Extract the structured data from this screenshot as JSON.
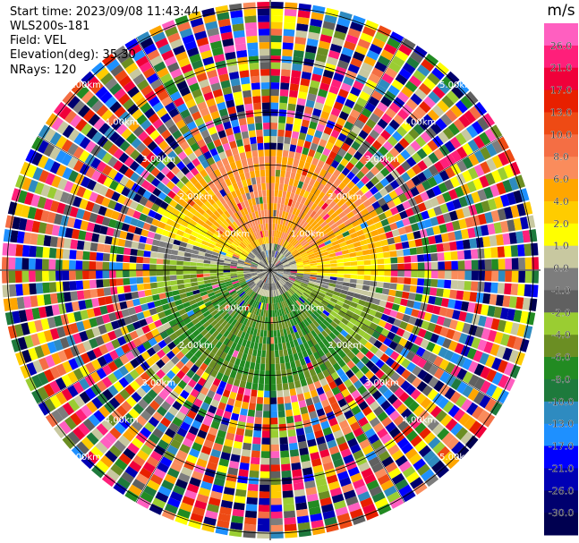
{
  "header": {
    "start_time": "Start time: 2023/09/08 11:43:44",
    "instrument": "WLS200s-181",
    "field": "Field: VEL",
    "elevation": "Elevation(deg): 35.30",
    "nrays": "NRays: 120"
  },
  "colorbar": {
    "unit": "m/s",
    "ticks": [
      "26.0",
      "21.0",
      "17.0",
      "13.0",
      "10.0",
      "8.0",
      "6.0",
      "4.0",
      "2.0",
      "1.0",
      "0.0",
      "-1.0",
      "-2.0",
      "-4.0",
      "-6.0",
      "-8.0",
      "-10.0",
      "-13.0",
      "-17.0",
      "-21.0",
      "-26.0",
      "-30.0"
    ],
    "colors": [
      "#ff5fc0",
      "#ff1f7a",
      "#f0003a",
      "#e82000",
      "#ee4a14",
      "#f46e44",
      "#fa8c5c",
      "#ffa600",
      "#ffcc00",
      "#ffff00",
      "#c8c8a0",
      "#7d7d7d",
      "#606060",
      "#9acd32",
      "#6b8e23",
      "#228b22",
      "#1e7a3c",
      "#2e8bc0",
      "#1e90ff",
      "#0000ff",
      "#0000b4",
      "#00006e",
      "#000050"
    ]
  },
  "chart_data": {
    "type": "ppi",
    "field": "VEL",
    "nrays": 120,
    "range_unit": "km",
    "range_rings_km": [
      1.0,
      2.0,
      3.0,
      4.0,
      5.0
    ],
    "ring_labels": [
      "1.00km",
      "2.00km",
      "3.00km",
      "4.00km",
      "5.00km"
    ],
    "max_range_km": 5.1,
    "vmin": -30,
    "vmax": 30
  }
}
